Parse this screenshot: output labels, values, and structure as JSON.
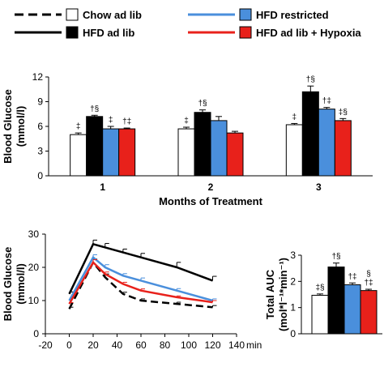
{
  "legend": {
    "items": [
      {
        "label": "Chow ad lib",
        "line": "dashed",
        "fill": "#ffffff"
      },
      {
        "label": "HFD ad lib",
        "line": "solid",
        "fill": "#000000"
      },
      {
        "label": "HFD restricted",
        "line": "#4a8fdc",
        "fill": "#4a8fdc"
      },
      {
        "label": "HFD ad lib + Hypoxia",
        "line": "#e8211b",
        "fill": "#ee1d1d"
      }
    ]
  },
  "colors": {
    "chow": "#ffffff",
    "hfd": "#000000",
    "restricted": "#4a8fdc",
    "hypoxia": "#e8211b"
  },
  "chart_data": [
    {
      "type": "bar",
      "ylabel": "Blood Glucose (mmol/l)",
      "xlabel": "Months of Treatment",
      "ylim": [
        0,
        12
      ],
      "yticks": [
        0,
        3,
        6,
        9,
        12
      ],
      "categories": [
        "1",
        "2",
        "3"
      ],
      "series": [
        {
          "name": "Chow ad lib",
          "values": [
            5.0,
            5.7,
            6.2
          ],
          "errors": [
            0.2,
            0.2,
            0.15
          ],
          "labels": [
            "‡",
            "‡",
            "‡"
          ]
        },
        {
          "name": "HFD ad lib",
          "values": [
            7.2,
            7.7,
            10.2
          ],
          "errors": [
            0.15,
            0.3,
            0.7
          ],
          "labels": [
            "†§",
            "†§",
            "†§"
          ]
        },
        {
          "name": "HFD restricted",
          "values": [
            5.7,
            6.7,
            8.1
          ],
          "errors": [
            0.3,
            0.5,
            0.2
          ],
          "labels": [
            "‡",
            "",
            "†‡"
          ]
        },
        {
          "name": "HFD ad lib + Hypoxia",
          "values": [
            5.7,
            5.2,
            6.7
          ],
          "errors": [
            0.1,
            0.2,
            0.25
          ],
          "labels": [
            "†‡",
            "",
            "‡§"
          ]
        }
      ]
    },
    {
      "type": "line",
      "ylabel": "Blood Glucose (mmol/l)",
      "xlim": [
        -20,
        140
      ],
      "ylim": [
        0,
        30
      ],
      "xticks": [
        -20,
        0,
        20,
        40,
        60,
        80,
        100,
        120,
        140
      ],
      "xtick_suffix": "min",
      "yticks": [
        0,
        10,
        20,
        30
      ],
      "series": [
        {
          "name": "Chow ad lib",
          "x": [
            0,
            20,
            30,
            45,
            60,
            90,
            120
          ],
          "y": [
            7.5,
            21.5,
            17,
            12,
            10,
            9,
            8
          ],
          "errors": [
            0.5,
            1,
            1,
            0.5,
            0.5,
            0.5,
            0.5
          ]
        },
        {
          "name": "HFD ad lib",
          "x": [
            0,
            20,
            30,
            45,
            60,
            90,
            120
          ],
          "y": [
            12,
            27,
            26,
            24.5,
            23,
            20,
            16
          ],
          "errors": [
            0.6,
            1.2,
            1.2,
            1.0,
            1.2,
            1.5,
            1.3
          ]
        },
        {
          "name": "HFD restricted",
          "x": [
            0,
            20,
            30,
            45,
            60,
            90,
            120
          ],
          "y": [
            10,
            23,
            20,
            17.5,
            16,
            13,
            10
          ],
          "errors": [
            0.5,
            0.8,
            0.8,
            0.6,
            0.8,
            0.6,
            0.5
          ]
        },
        {
          "name": "HFD ad lib + Hypoxia",
          "x": [
            0,
            20,
            30,
            45,
            60,
            90,
            120
          ],
          "y": [
            9,
            21.5,
            18,
            15,
            13,
            11,
            9.5
          ],
          "errors": [
            0.4,
            0.8,
            0.6,
            0.5,
            0.5,
            0.4,
            0.5
          ]
        }
      ]
    },
    {
      "type": "bar",
      "ylabel": "Total AUC (mol*l⁻¹*min⁻¹)",
      "ylim": [
        0,
        3
      ],
      "yticks": [
        0,
        1,
        2,
        3
      ],
      "categories": [
        ""
      ],
      "series": [
        {
          "name": "Chow ad lib",
          "values": [
            1.47
          ],
          "errors": [
            0.05
          ],
          "labels": [
            "‡§"
          ]
        },
        {
          "name": "HFD ad lib",
          "values": [
            2.55
          ],
          "errors": [
            0.15
          ],
          "labels": [
            "†§"
          ]
        },
        {
          "name": "HFD restricted",
          "values": [
            1.87
          ],
          "errors": [
            0.07
          ],
          "labels": [
            "†‡"
          ]
        },
        {
          "name": "HFD ad lib + Hypoxia",
          "values": [
            1.65
          ],
          "errors": [
            0.05
          ],
          "labels": [
            "§ †‡"
          ]
        }
      ]
    }
  ]
}
